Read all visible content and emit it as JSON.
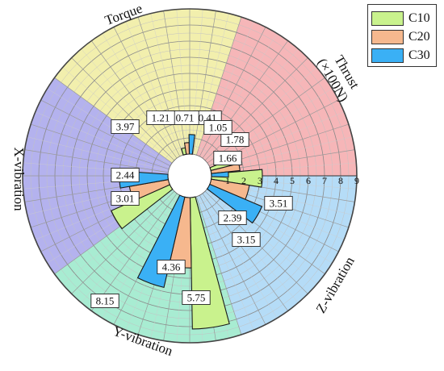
{
  "chart_data": {
    "type": "polar-bar",
    "radial_axis": {
      "min": 0,
      "max": 9,
      "ticks": [
        1,
        2,
        3,
        4,
        5,
        6,
        7,
        8,
        9
      ]
    },
    "categories": [
      {
        "label": "Thrust",
        "sublabel": "(×100N)",
        "sector_color": "#f6b6b8"
      },
      {
        "label": "Z-vibration",
        "sublabel": "",
        "sector_color": "#b5dcf7"
      },
      {
        "label": "Y-vibration",
        "sublabel": "",
        "sector_color": "#a8ecd2"
      },
      {
        "label": "X-vibration",
        "sublabel": "",
        "sector_color": "#b4b2ee"
      },
      {
        "label": "Torque",
        "sublabel": "",
        "sector_color": "#f2efad"
      }
    ],
    "series": [
      {
        "name": "C10",
        "color": "#c9f28d",
        "values": [
          1.66,
          3.15,
          8.15,
          3.97,
          0.41
        ]
      },
      {
        "name": "C20",
        "color": "#f6b88e",
        "values": [
          1.78,
          2.39,
          4.36,
          2.44,
          0.71
        ]
      },
      {
        "name": "C30",
        "color": "#3ab0f5",
        "values": [
          1.05,
          3.51,
          5.75,
          3.01,
          1.21
        ]
      }
    ],
    "legend_position": "top-right",
    "grid": true
  }
}
